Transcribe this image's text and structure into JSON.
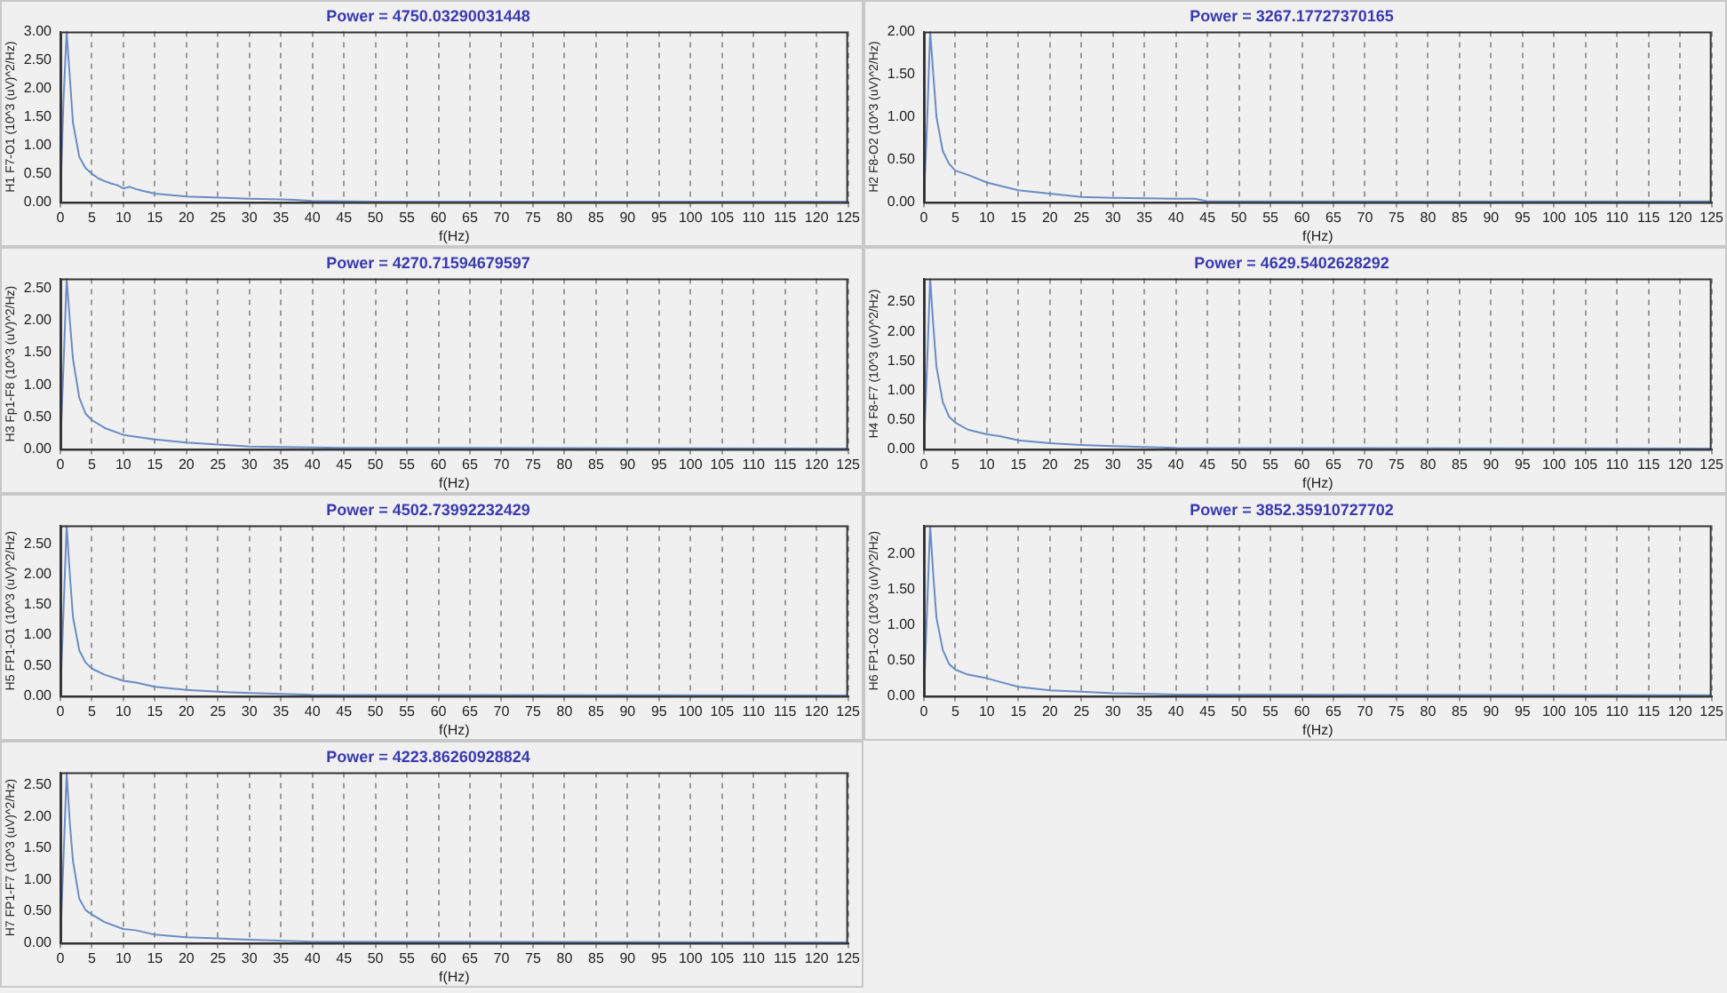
{
  "chart_data": [
    {
      "type": "line",
      "title": "Power = 4750.03290031448",
      "xlabel": "f(Hz)",
      "ylabel": "H1 F7-O1 (10^3 (uV)^2/Hz)",
      "color": "#6a8cc4",
      "grid": "x",
      "xlim": [
        0,
        125
      ],
      "xticks": [
        0,
        5,
        10,
        15,
        20,
        25,
        30,
        35,
        40,
        45,
        50,
        55,
        60,
        65,
        70,
        75,
        80,
        85,
        90,
        95,
        100,
        105,
        110,
        115,
        120,
        125
      ],
      "ylim": [
        0,
        3
      ],
      "yticks": [
        {
          "value": 0,
          "label": "0.00"
        },
        {
          "value": 0.5,
          "label": "0.50"
        },
        {
          "value": 1,
          "label": "1.00"
        },
        {
          "value": 1.5,
          "label": "1.50"
        },
        {
          "value": 2,
          "label": "2.00"
        },
        {
          "value": 2.5,
          "label": "2.50"
        },
        {
          "value": 3,
          "label": "3.00"
        }
      ],
      "x": [
        0,
        0.5,
        1,
        1.5,
        2,
        3,
        4,
        5,
        6,
        7,
        8,
        9,
        10,
        11,
        12,
        13,
        15,
        20,
        25,
        30,
        35,
        37,
        40,
        50,
        125
      ],
      "values": [
        0,
        1.8,
        3.0,
        2.2,
        1.4,
        0.8,
        0.6,
        0.5,
        0.42,
        0.37,
        0.33,
        0.3,
        0.24,
        0.27,
        0.23,
        0.2,
        0.15,
        0.1,
        0.08,
        0.06,
        0.05,
        0.04,
        0.02,
        0.01,
        0.01
      ]
    },
    {
      "type": "line",
      "title": "Power = 3267.17727370165",
      "xlabel": "f(Hz)",
      "ylabel": "H2 F8-O2 (10^3 (uV)^2/Hz)",
      "color": "#6a8cc4",
      "grid": "x",
      "xlim": [
        0,
        125
      ],
      "xticks": [
        0,
        5,
        10,
        15,
        20,
        25,
        30,
        35,
        40,
        45,
        50,
        55,
        60,
        65,
        70,
        75,
        80,
        85,
        90,
        95,
        100,
        105,
        110,
        115,
        120,
        125
      ],
      "ylim": [
        0,
        2
      ],
      "yticks": [
        {
          "value": 0,
          "label": "0.00"
        },
        {
          "value": 0.5,
          "label": "0.50"
        },
        {
          "value": 1,
          "label": "1.00"
        },
        {
          "value": 1.5,
          "label": "1.50"
        },
        {
          "value": 2,
          "label": "2.00"
        }
      ],
      "x": [
        0,
        0.5,
        1,
        1.5,
        2,
        3,
        4,
        5,
        7,
        10,
        15,
        20,
        25,
        30,
        40,
        43,
        45,
        125
      ],
      "values": [
        0,
        0.9,
        2.0,
        1.5,
        1.0,
        0.6,
        0.45,
        0.37,
        0.32,
        0.23,
        0.14,
        0.1,
        0.06,
        0.05,
        0.04,
        0.04,
        0.01,
        0.01
      ]
    },
    {
      "type": "line",
      "title": "Power = 4270.71594679597",
      "xlabel": "f(Hz)",
      "ylabel": "H3 Fp1-F8 (10^3 (uV)^2/Hz)",
      "color": "#6a8cc4",
      "grid": "x",
      "xlim": [
        0,
        125
      ],
      "xticks": [
        0,
        5,
        10,
        15,
        20,
        25,
        30,
        35,
        40,
        45,
        50,
        55,
        60,
        65,
        70,
        75,
        80,
        85,
        90,
        95,
        100,
        105,
        110,
        115,
        120,
        125
      ],
      "ylim": [
        0,
        2.65
      ],
      "yticks": [
        {
          "value": 0,
          "label": "0.00"
        },
        {
          "value": 0.5,
          "label": "0.50"
        },
        {
          "value": 1,
          "label": "1.00"
        },
        {
          "value": 1.5,
          "label": "1.50"
        },
        {
          "value": 2,
          "label": "2.00"
        },
        {
          "value": 2.5,
          "label": "2.50"
        }
      ],
      "x": [
        0,
        0.5,
        1,
        1.5,
        2,
        3,
        4,
        5,
        7,
        10,
        15,
        20,
        25,
        30,
        45,
        125
      ],
      "values": [
        0,
        1.3,
        2.65,
        2.0,
        1.4,
        0.8,
        0.55,
        0.45,
        0.33,
        0.22,
        0.15,
        0.1,
        0.07,
        0.04,
        0.02,
        0.01
      ]
    },
    {
      "type": "line",
      "title": "Power = 4629.5402628292",
      "xlabel": "f(Hz)",
      "ylabel": "H4 F8-F7 (10^3 (uV)^2/Hz)",
      "color": "#6a8cc4",
      "grid": "x",
      "xlim": [
        0,
        125
      ],
      "xticks": [
        0,
        5,
        10,
        15,
        20,
        25,
        30,
        35,
        40,
        45,
        50,
        55,
        60,
        65,
        70,
        75,
        80,
        85,
        90,
        95,
        100,
        105,
        110,
        115,
        120,
        125
      ],
      "ylim": [
        0,
        2.9
      ],
      "yticks": [
        {
          "value": 0,
          "label": "0.00"
        },
        {
          "value": 0.5,
          "label": "0.50"
        },
        {
          "value": 1,
          "label": "1.00"
        },
        {
          "value": 1.5,
          "label": "1.50"
        },
        {
          "value": 2,
          "label": "2.00"
        },
        {
          "value": 2.5,
          "label": "2.50"
        }
      ],
      "x": [
        0,
        0.5,
        1,
        1.5,
        2,
        3,
        4,
        5,
        7,
        10,
        12,
        15,
        20,
        25,
        30,
        40,
        125
      ],
      "values": [
        0,
        1.4,
        2.9,
        2.1,
        1.4,
        0.8,
        0.55,
        0.45,
        0.33,
        0.25,
        0.22,
        0.15,
        0.1,
        0.07,
        0.05,
        0.02,
        0.01
      ]
    },
    {
      "type": "line",
      "title": "Power = 4502.73992232429",
      "xlabel": "f(Hz)",
      "ylabel": "H5 FP1-O1 (10^3 (uV)^2/Hz)",
      "color": "#6a8cc4",
      "grid": "x",
      "xlim": [
        0,
        125
      ],
      "xticks": [
        0,
        5,
        10,
        15,
        20,
        25,
        30,
        35,
        40,
        45,
        50,
        55,
        60,
        65,
        70,
        75,
        80,
        85,
        90,
        95,
        100,
        105,
        110,
        115,
        120,
        125
      ],
      "ylim": [
        0,
        2.8
      ],
      "yticks": [
        {
          "value": 0,
          "label": "0.00"
        },
        {
          "value": 0.5,
          "label": "0.50"
        },
        {
          "value": 1,
          "label": "1.00"
        },
        {
          "value": 1.5,
          "label": "1.50"
        },
        {
          "value": 2,
          "label": "2.00"
        },
        {
          "value": 2.5,
          "label": "2.50"
        }
      ],
      "x": [
        0,
        0.5,
        1,
        1.5,
        2,
        3,
        4,
        5,
        7,
        10,
        12,
        15,
        20,
        25,
        30,
        40,
        125
      ],
      "values": [
        0,
        1.4,
        2.8,
        2.0,
        1.3,
        0.75,
        0.55,
        0.45,
        0.35,
        0.25,
        0.22,
        0.15,
        0.1,
        0.07,
        0.05,
        0.02,
        0.01
      ]
    },
    {
      "type": "line",
      "title": "Power = 3852.35910727702",
      "xlabel": "f(Hz)",
      "ylabel": "H6 FP1-O2 (10^3 (uV)^2/Hz)",
      "color": "#6a8cc4",
      "grid": "x",
      "xlim": [
        0,
        125
      ],
      "xticks": [
        0,
        5,
        10,
        15,
        20,
        25,
        30,
        35,
        40,
        45,
        50,
        55,
        60,
        65,
        70,
        75,
        80,
        85,
        90,
        95,
        100,
        105,
        110,
        115,
        120,
        125
      ],
      "ylim": [
        0,
        2.4
      ],
      "yticks": [
        {
          "value": 0,
          "label": "0.00"
        },
        {
          "value": 0.5,
          "label": "0.50"
        },
        {
          "value": 1,
          "label": "1.00"
        },
        {
          "value": 1.5,
          "label": "1.50"
        },
        {
          "value": 2,
          "label": "2.00"
        }
      ],
      "x": [
        0,
        0.5,
        1,
        1.5,
        2,
        3,
        4,
        5,
        7,
        10,
        12,
        15,
        20,
        25,
        30,
        40,
        125
      ],
      "values": [
        0,
        1.2,
        2.4,
        1.7,
        1.1,
        0.65,
        0.45,
        0.37,
        0.3,
        0.25,
        0.2,
        0.13,
        0.08,
        0.06,
        0.04,
        0.02,
        0.01
      ]
    },
    {
      "type": "line",
      "title": "Power = 4223.86260928824",
      "xlabel": "f(Hz)",
      "ylabel": "H7 FP1-F7 (10^3 (uV)^2/Hz)",
      "color": "#6a8cc4",
      "grid": "x",
      "xlim": [
        0,
        125
      ],
      "xticks": [
        0,
        5,
        10,
        15,
        20,
        25,
        30,
        35,
        40,
        45,
        50,
        55,
        60,
        65,
        70,
        75,
        80,
        85,
        90,
        95,
        100,
        105,
        110,
        115,
        120,
        125
      ],
      "ylim": [
        0,
        2.7
      ],
      "yticks": [
        {
          "value": 0,
          "label": "0.00"
        },
        {
          "value": 0.5,
          "label": "0.50"
        },
        {
          "value": 1,
          "label": "1.00"
        },
        {
          "value": 1.5,
          "label": "1.50"
        },
        {
          "value": 2,
          "label": "2.00"
        },
        {
          "value": 2.5,
          "label": "2.50"
        }
      ],
      "x": [
        0,
        0.5,
        1,
        1.5,
        2,
        3,
        4,
        5,
        7,
        10,
        12,
        15,
        20,
        25,
        30,
        40,
        125
      ],
      "values": [
        0,
        1.35,
        2.7,
        1.9,
        1.3,
        0.7,
        0.52,
        0.45,
        0.33,
        0.22,
        0.2,
        0.13,
        0.09,
        0.07,
        0.05,
        0.02,
        0.01
      ]
    }
  ]
}
